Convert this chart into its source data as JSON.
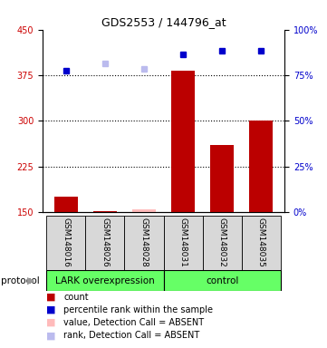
{
  "title": "GDS2553 / 144796_at",
  "samples": [
    "GSM148016",
    "GSM148026",
    "GSM148028",
    "GSM148031",
    "GSM148032",
    "GSM148035"
  ],
  "bar_values": [
    175,
    152,
    155,
    382,
    260,
    300
  ],
  "bar_absent": [
    false,
    false,
    true,
    false,
    false,
    false
  ],
  "rank_values": [
    383,
    395,
    385,
    410,
    415,
    415
  ],
  "rank_absent": [
    false,
    true,
    true,
    false,
    false,
    false
  ],
  "ylim_left": [
    150,
    450
  ],
  "ylim_right": [
    0,
    100
  ],
  "yticks_left": [
    150,
    225,
    300,
    375,
    450
  ],
  "yticks_right": [
    0,
    25,
    50,
    75,
    100
  ],
  "dotted_yvals": [
    225,
    300,
    375
  ],
  "groups": [
    {
      "label": "LARK overexpression",
      "start": 0,
      "end": 3,
      "color": "#66ff66"
    },
    {
      "label": "control",
      "start": 3,
      "end": 6,
      "color": "#66ff66"
    }
  ],
  "bar_color_present": "#bb0000",
  "bar_color_absent": "#ffbbbb",
  "rank_color_present": "#0000cc",
  "rank_color_absent": "#bbbbee",
  "sample_box_color": "#d8d8d8",
  "left_label_color": "#cc0000",
  "right_label_color": "#0000cc",
  "title_fontsize": 9,
  "tick_fontsize": 7,
  "legend_fontsize": 7
}
